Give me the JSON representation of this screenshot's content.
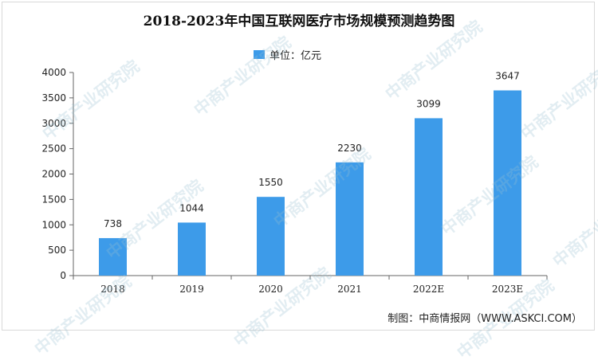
{
  "title": "2018-2023年中国互联网医疗市场规模预测趋势图",
  "legend": {
    "label": "单位：亿元"
  },
  "source": "制图：中商情报网（WWW.ASKCI.COM）",
  "watermark": "中商产业研究院",
  "colors": {
    "bar": "#3d9be9",
    "axis": "#666666",
    "text": "#222222"
  },
  "chart_data": {
    "type": "bar",
    "categories": [
      "2018",
      "2019",
      "2020",
      "2021",
      "2022E",
      "2023E"
    ],
    "values": [
      738,
      1044,
      1550,
      2230,
      3099,
      3647
    ],
    "data_labels": [
      "738",
      "1044",
      "1550",
      "2230",
      "3099",
      "3647"
    ],
    "ylim": [
      0,
      4000
    ],
    "yticks": [
      "0",
      "500",
      "1000",
      "1500",
      "2000",
      "2500",
      "3000",
      "3500",
      "4000"
    ],
    "legend": "top-center",
    "grid": false
  }
}
